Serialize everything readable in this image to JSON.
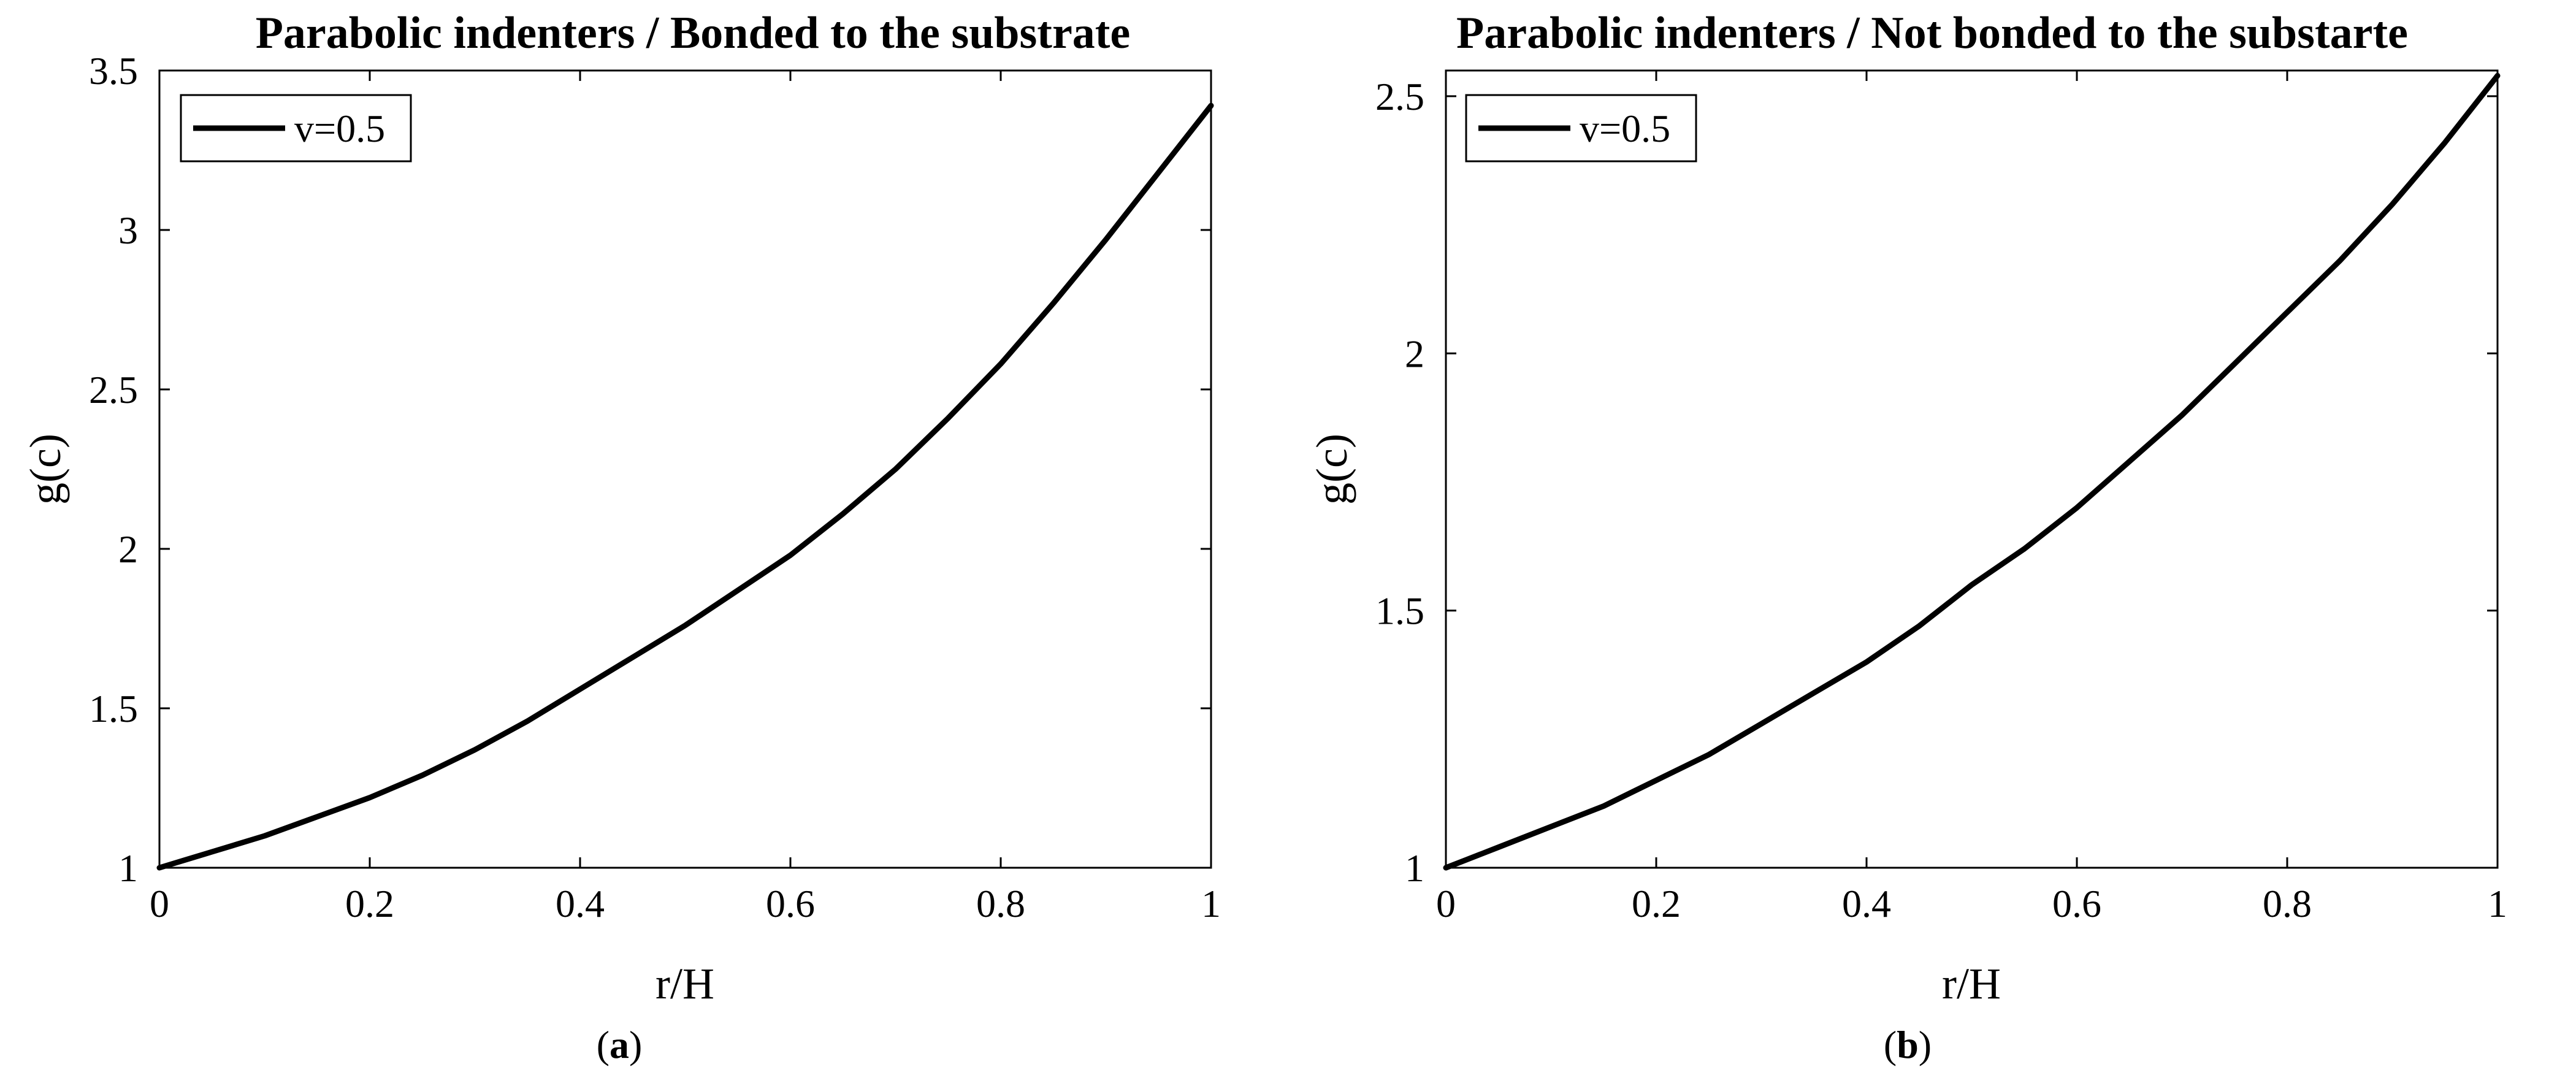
{
  "chart_data": [
    {
      "type": "line",
      "title": "Parabolic indenters / Bonded to the substrate",
      "xlabel": "r/H",
      "ylabel": "g(c)",
      "xlim": [
        0,
        1
      ],
      "ylim": [
        1,
        3.5
      ],
      "xticks": [
        "0",
        "0.2",
        "0.4",
        "0.6",
        "0.8",
        "1"
      ],
      "yticks": [
        "1",
        "1.5",
        "2",
        "2.5",
        "3",
        "3.5"
      ],
      "ytick_values": [
        1,
        1.5,
        2,
        2.5,
        3,
        3.5
      ],
      "grid": false,
      "legend_position": "top-left",
      "caption_letter": "a",
      "series": [
        {
          "name": "v=0.5",
          "color": "#000000",
          "x": [
            0,
            0.05,
            0.1,
            0.15,
            0.2,
            0.25,
            0.3,
            0.35,
            0.4,
            0.45,
            0.5,
            0.55,
            0.6,
            0.65,
            0.7,
            0.75,
            0.8,
            0.85,
            0.9,
            0.95,
            1.0
          ],
          "y": [
            1.0,
            1.05,
            1.1,
            1.16,
            1.22,
            1.29,
            1.37,
            1.46,
            1.56,
            1.66,
            1.76,
            1.87,
            1.98,
            2.11,
            2.25,
            2.41,
            2.58,
            2.77,
            2.97,
            3.18,
            3.39
          ]
        }
      ]
    },
    {
      "type": "line",
      "title": "Parabolic indenters / Not bonded to the substarte",
      "xlabel": "r/H",
      "ylabel": "g(c)",
      "xlim": [
        0,
        1
      ],
      "ylim": [
        1,
        2.55
      ],
      "xticks": [
        "0",
        "0.2",
        "0.4",
        "0.6",
        "0.8",
        "1"
      ],
      "yticks": [
        "1",
        "1.5",
        "2",
        "2.5"
      ],
      "ytick_values": [
        1,
        1.5,
        2,
        2.5
      ],
      "grid": false,
      "legend_position": "top-left",
      "caption_letter": "b",
      "series": [
        {
          "name": "v=0.5",
          "color": "#000000",
          "x": [
            0,
            0.05,
            0.1,
            0.15,
            0.2,
            0.25,
            0.3,
            0.35,
            0.4,
            0.45,
            0.5,
            0.55,
            0.6,
            0.65,
            0.7,
            0.75,
            0.8,
            0.85,
            0.9,
            0.95,
            1.0
          ],
          "y": [
            1.0,
            1.04,
            1.08,
            1.12,
            1.17,
            1.22,
            1.28,
            1.34,
            1.4,
            1.47,
            1.55,
            1.62,
            1.7,
            1.79,
            1.88,
            1.98,
            2.08,
            2.18,
            2.29,
            2.41,
            2.54
          ]
        }
      ]
    }
  ]
}
